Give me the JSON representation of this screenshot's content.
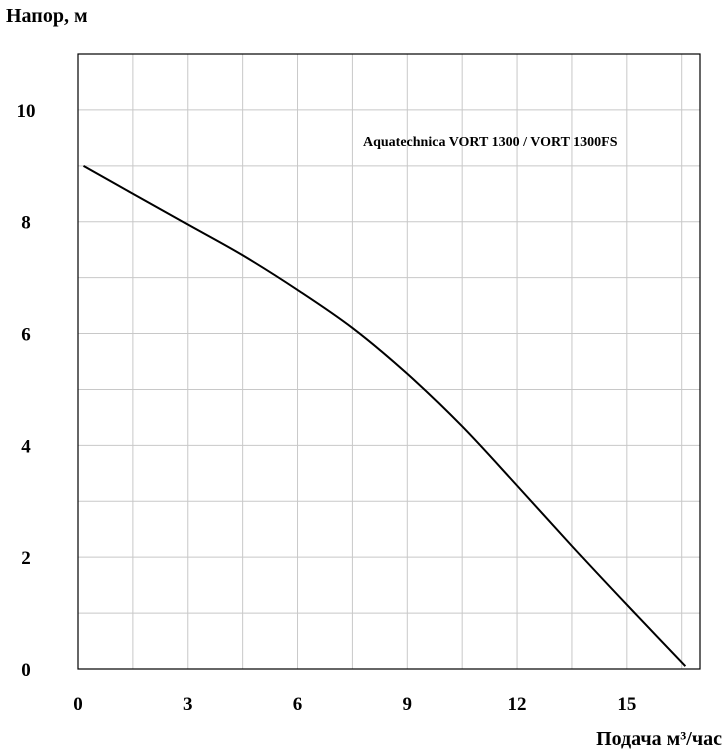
{
  "chart_data": {
    "type": "line",
    "title": "",
    "ylabel": "Напор, м",
    "xlabel": "Подача м³/час",
    "xlim": [
      0,
      17
    ],
    "ylim": [
      0,
      11
    ],
    "x_ticks": [
      0,
      3,
      6,
      9,
      12,
      15
    ],
    "y_ticks": [
      0,
      2,
      4,
      6,
      8,
      10
    ],
    "x_grid_step": 1.5,
    "y_grid_step": 1,
    "grid": true,
    "series": [
      {
        "name": "Aquatechnica VORT 1300 / VORT 1300FS",
        "x": [
          0.15,
          1.5,
          3.0,
          4.5,
          6.0,
          7.5,
          9.0,
          10.5,
          12.0,
          13.5,
          15.0,
          16.6
        ],
        "y": [
          9.0,
          8.5,
          7.95,
          7.4,
          6.78,
          6.1,
          5.28,
          4.34,
          3.28,
          2.2,
          1.15,
          0.05
        ]
      }
    ]
  }
}
